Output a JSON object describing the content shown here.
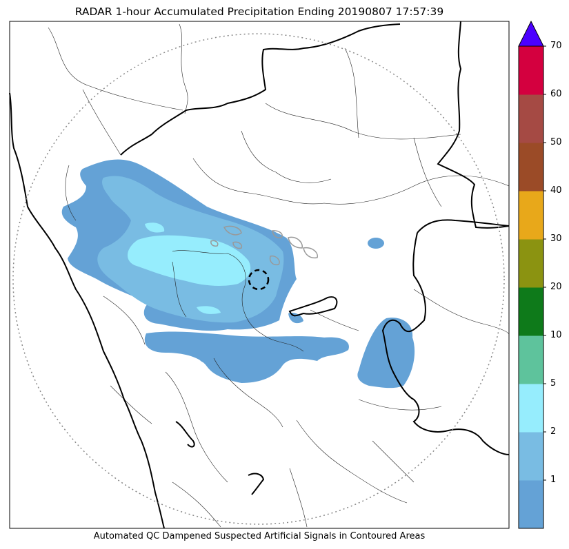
{
  "title": "RADAR 1-hour Accumulated Precipitation Ending 20190807 17:57:39",
  "caption": "Automated QC Dampened Suspected Artificial Signals in Contoured Areas",
  "colorbar": {
    "ticks": [
      "1",
      "2",
      "5",
      "10",
      "20",
      "30",
      "40",
      "50",
      "60",
      "70"
    ],
    "colors": [
      "#64a2d6",
      "#79bce3",
      "#96edfd",
      "#5ec39c",
      "#0e7a1a",
      "#8b9311",
      "#e8a81a",
      "#9b4b27",
      "#a54a44",
      "#d4003f"
    ],
    "extend_color": "#4b00ff"
  }
}
